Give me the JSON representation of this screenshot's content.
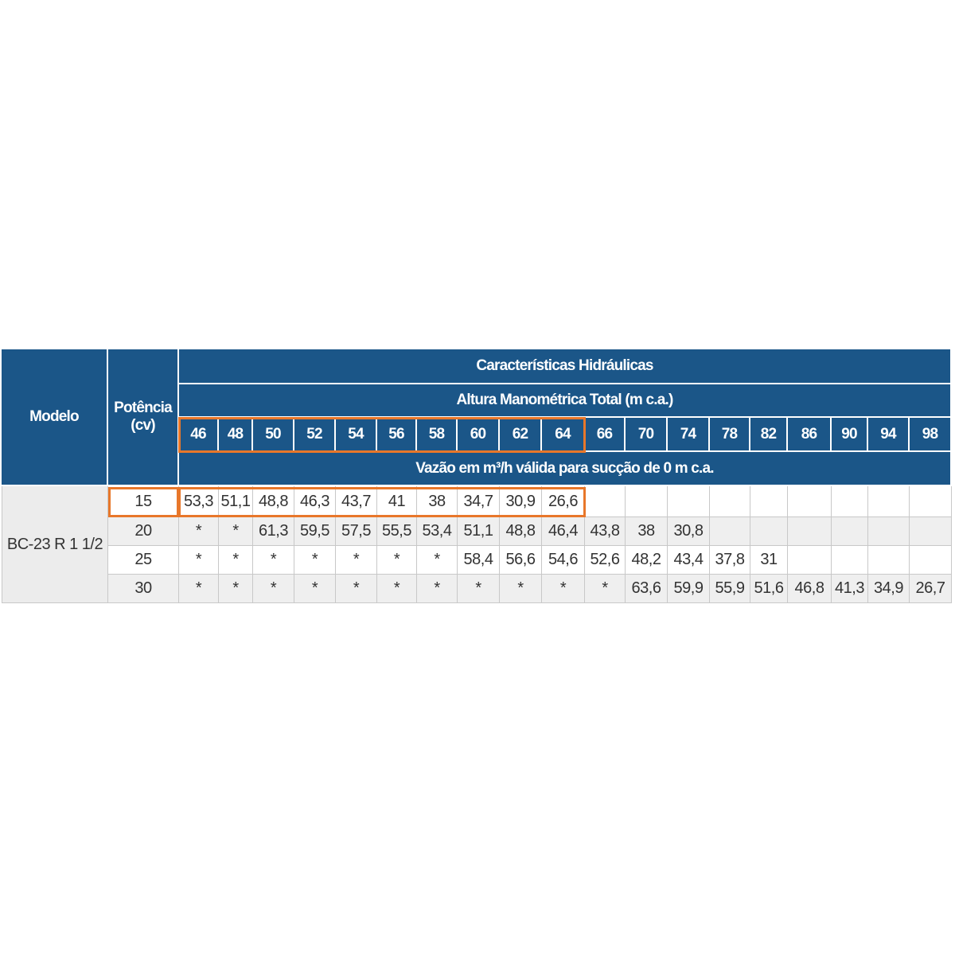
{
  "table": {
    "model_header": "Modelo",
    "power_header": "Potência (cv)",
    "group_header": "Características Hidráulicas",
    "subgroup_header": "Altura Manométrica Total (m c.a.)",
    "flow_header": "Vazão em m³/h válida para sucção de 0 m c.a.",
    "heights": [
      "46",
      "48",
      "50",
      "52",
      "54",
      "56",
      "58",
      "60",
      "62",
      "64",
      "66",
      "70",
      "74",
      "78",
      "82",
      "86",
      "90",
      "94",
      "98"
    ],
    "model": "BC-23 R 1 1/2",
    "rows": [
      {
        "power": "15",
        "values": [
          "53,3",
          "51,1",
          "48,8",
          "46,3",
          "43,7",
          "41",
          "38",
          "34,7",
          "30,9",
          "26,6",
          null,
          null,
          null,
          null,
          null,
          null,
          null,
          null,
          null
        ]
      },
      {
        "power": "20",
        "values": [
          "*",
          "*",
          "61,3",
          "59,5",
          "57,5",
          "55,5",
          "53,4",
          "51,1",
          "48,8",
          "46,4",
          "43,8",
          "38",
          "30,8",
          null,
          null,
          null,
          null,
          null,
          null
        ]
      },
      {
        "power": "25",
        "values": [
          "*",
          "*",
          "*",
          "*",
          "*",
          "*",
          "*",
          "58,4",
          "56,6",
          "54,6",
          "52,6",
          "48,2",
          "43,4",
          "37,8",
          "31",
          null,
          null,
          null,
          null
        ]
      },
      {
        "power": "30",
        "values": [
          "*",
          "*",
          "*",
          "*",
          "*",
          "*",
          "*",
          "*",
          "*",
          "*",
          "*",
          "63,6",
          "59,9",
          "55,9",
          "51,6",
          "46,8",
          "41,3",
          "34,9",
          "26,7"
        ]
      }
    ]
  }
}
